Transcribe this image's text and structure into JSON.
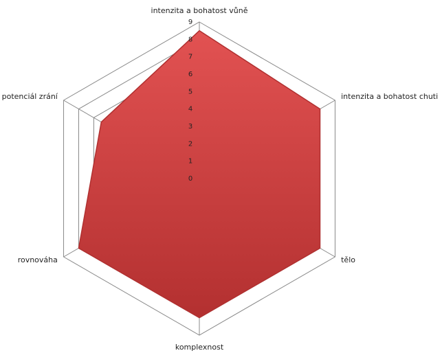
{
  "chart_data": {
    "type": "radar",
    "categories": [
      "intenzita a bohatost vůně",
      "intenzita a bohatost chuti",
      "tělo",
      "komplexnost",
      "rovnováha",
      "potenciál zrání"
    ],
    "series": [
      {
        "color": "#d44444",
        "values": [
          8.5,
          8,
          8,
          8,
          8,
          6.5
        ]
      }
    ],
    "rlim": [
      0,
      9
    ],
    "rticks": [
      0,
      1,
      2,
      3,
      4,
      5,
      6,
      7,
      8,
      9
    ],
    "grid": true
  }
}
